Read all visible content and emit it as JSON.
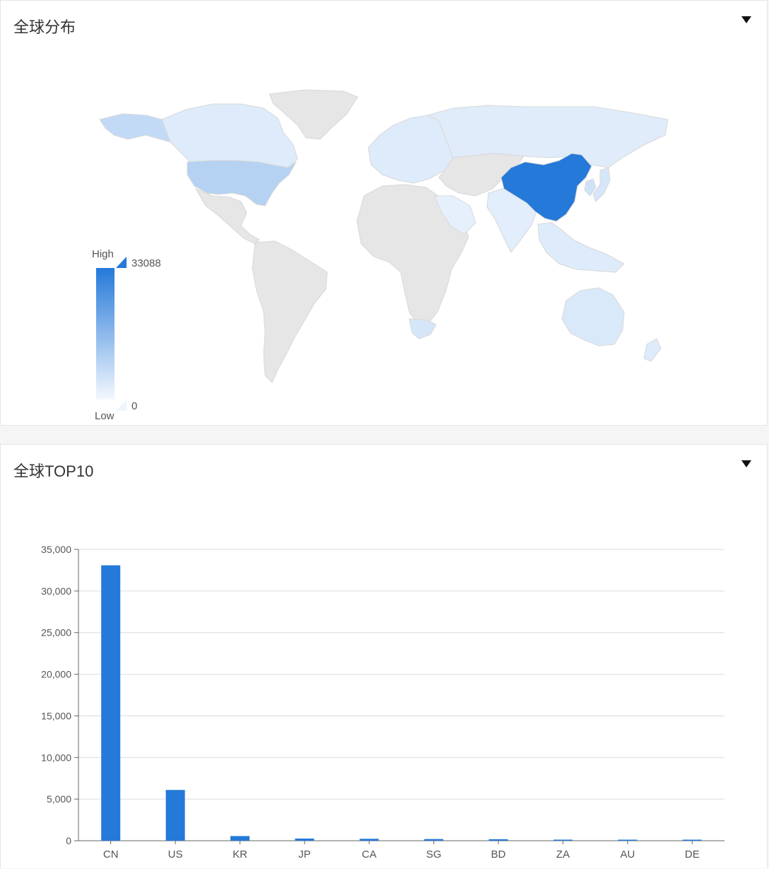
{
  "map_panel": {
    "title": "全球分布",
    "legend": {
      "high_label": "High",
      "low_label": "Low",
      "max_value": "33088",
      "min_value": "0"
    },
    "colors": {
      "high": "#2479d9",
      "low": "#eef5fd",
      "no_data": "#e6e6e6",
      "border": "#d8d8d8"
    },
    "regions": [
      {
        "name": "Alaska",
        "level": 0.22
      },
      {
        "name": "Canada",
        "level": 0.08
      },
      {
        "name": "United States",
        "level": 0.28
      },
      {
        "name": "Russia",
        "level": 0.07
      },
      {
        "name": "Europe",
        "level": 0.08
      },
      {
        "name": "China",
        "level": 1.0
      },
      {
        "name": "India",
        "level": 0.06
      },
      {
        "name": "Southeast Asia",
        "level": 0.08
      },
      {
        "name": "Japan",
        "level": 0.12
      },
      {
        "name": "Korea",
        "level": 0.15
      },
      {
        "name": "Australia",
        "level": 0.1
      },
      {
        "name": "South Africa",
        "level": 0.12
      },
      {
        "name": "Arabia",
        "level": 0.04
      }
    ]
  },
  "bar_panel": {
    "title": "全球TOP10"
  },
  "chart_data": {
    "type": "bar",
    "categories": [
      "CN",
      "US",
      "KR",
      "JP",
      "CA",
      "SG",
      "BD",
      "ZA",
      "AU",
      "DE"
    ],
    "values": [
      33088,
      6100,
      560,
      260,
      230,
      200,
      180,
      130,
      110,
      100
    ],
    "ylim": [
      0,
      35000
    ],
    "yticks": [
      0,
      5000,
      10000,
      15000,
      20000,
      25000,
      30000,
      35000
    ],
    "ytick_labels": [
      "0",
      "5,000",
      "10,000",
      "15,000",
      "20,000",
      "25,000",
      "30,000",
      "35,000"
    ],
    "grid": true,
    "bar_color": "#2479d9",
    "xlabel": "",
    "ylabel": ""
  }
}
